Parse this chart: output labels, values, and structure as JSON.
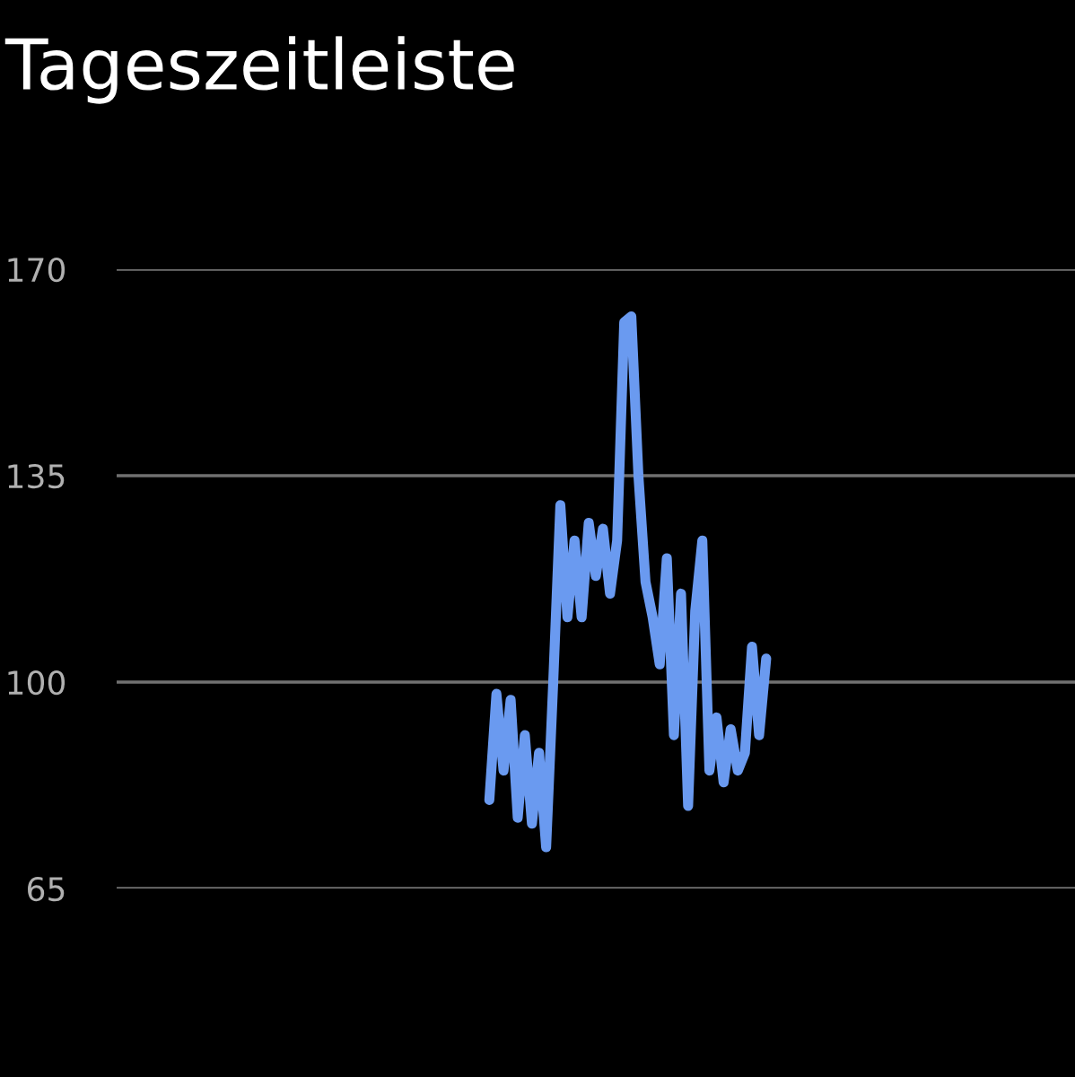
{
  "chart_data": {
    "type": "line",
    "title": "Tageszeitleiste",
    "grid": "y",
    "ylim": [
      65,
      170
    ],
    "yticks": [
      65,
      100,
      135,
      170
    ],
    "legend": false,
    "marker": "none",
    "line_style": "solid",
    "categories": [
      null,
      null,
      null,
      null,
      null,
      null,
      null,
      null,
      null,
      null,
      null,
      null,
      null,
      null,
      null,
      null,
      null,
      null,
      null,
      null,
      null,
      null,
      null,
      null,
      null,
      null,
      null,
      null,
      null,
      null,
      null,
      null,
      null,
      null,
      null,
      null,
      null,
      null,
      null,
      null,
      null,
      null,
      null,
      null,
      null,
      null,
      null,
      null,
      null,
      null,
      null,
      null,
      null,
      null,
      null,
      null,
      null,
      null,
      null,
      null,
      null,
      null,
      null,
      null,
      null,
      null,
      null,
      null,
      null,
      null,
      null,
      null,
      null,
      null,
      null,
      null,
      null,
      null,
      null,
      null,
      null,
      null,
      null,
      null,
      null,
      null,
      null,
      null,
      null,
      null,
      null,
      null,
      null,
      null,
      null,
      null,
      null,
      null,
      null,
      null,
      null,
      null,
      null,
      null,
      null,
      null,
      null,
      null,
      null,
      null,
      null,
      null,
      null,
      null,
      null,
      null,
      null,
      null,
      null,
      null,
      null,
      null,
      null,
      null,
      null,
      null,
      null,
      null,
      null,
      null,
      null,
      null,
      null,
      null,
      null
    ],
    "series": [
      {
        "color": "#6a9af0",
        "values": [
          null,
          null,
          null,
          null,
          null,
          null,
          null,
          null,
          null,
          null,
          null,
          null,
          null,
          null,
          null,
          null,
          null,
          null,
          null,
          null,
          null,
          null,
          null,
          null,
          null,
          null,
          null,
          null,
          null,
          null,
          null,
          null,
          null,
          null,
          null,
          null,
          null,
          null,
          null,
          null,
          null,
          null,
          null,
          null,
          null,
          null,
          null,
          null,
          null,
          null,
          null,
          null,
          80,
          98,
          85,
          97,
          77,
          91,
          76,
          88,
          72,
          100,
          130,
          111,
          124,
          111,
          127,
          118,
          126,
          115,
          124,
          161,
          162,
          135,
          117,
          111,
          103,
          121,
          91,
          115,
          79,
          112,
          124,
          85,
          94,
          83,
          92,
          85,
          88,
          106,
          91,
          104,
          null,
          null,
          null,
          null,
          null,
          null,
          null,
          null,
          null,
          null,
          null,
          null,
          null,
          null,
          null,
          null,
          null,
          null,
          null,
          null,
          null,
          null,
          null,
          null,
          null,
          null,
          null,
          null,
          null,
          null,
          null,
          null,
          null,
          null,
          null,
          null,
          null,
          null,
          null,
          null,
          null,
          null,
          null
        ]
      }
    ]
  }
}
